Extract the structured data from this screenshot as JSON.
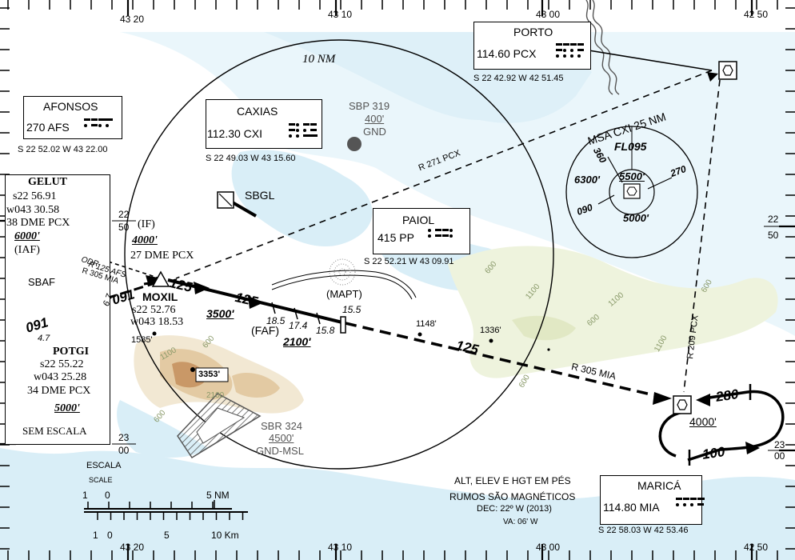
{
  "grid": {
    "top_labels": [
      "43 20",
      "43 10",
      "43 00",
      "42 50"
    ],
    "bottom_labels": [
      "43 20",
      "43 10",
      "43 00",
      "42 50"
    ],
    "left_labels": [
      {
        "deg": "22",
        "min": "50"
      },
      {
        "deg": "23",
        "min": "00"
      }
    ],
    "right_labels": [
      {
        "deg": "22",
        "min": "50"
      },
      {
        "deg": "23",
        "min": "00"
      }
    ]
  },
  "range_ring": "10 NM",
  "fixes": {
    "afonsos": {
      "name": "AFONSOS",
      "freq": "270 AFS",
      "coord": "S 22 52.02 W 43 22.00"
    },
    "caxias": {
      "name": "CAXIAS",
      "freq": "112.30 CXI",
      "coord": "S 22 49.03 W 43 15.60"
    },
    "porto": {
      "name": "PORTO",
      "freq": "114.60  PCX",
      "coord": "S 22 42.92 W 42 51.45"
    },
    "paiol": {
      "name": "PAIOL",
      "freq": "415 PP",
      "coord": "S 22 52.21 W 43 09.91"
    },
    "marica": {
      "name": "MARICÁ",
      "freq": "114.80  MIA",
      "coord": "S 22 58.03 W 42 53.46"
    }
  },
  "gelut": {
    "name": "GELUT",
    "lat": "s22  56.91",
    "lon": "w043  30.58",
    "dme": "38  DME  PCX",
    "alt": "6000'",
    "role": "(IAF)"
  },
  "potgi": {
    "name": "POTGI",
    "lat": "s22  55.22",
    "lon": "w043  25.28",
    "dme": "34  DME  PCX",
    "alt": "5000'",
    "note": "SEM  ESCALA"
  },
  "moxil": {
    "role": "(IF)",
    "alt": "4000'",
    "dme": "27 DME PCX",
    "name": "MOXIL",
    "lat": "s22  52.76",
    "lon": "w043  18.53",
    "min_alt": "3500'"
  },
  "faf": {
    "label": "(FAF)",
    "alt": "2100'"
  },
  "mapt": {
    "label": "(MAPT)",
    "dist": "15.5"
  },
  "dme_marks": [
    "18.5",
    "17.4",
    "15.8"
  ],
  "sbp319": {
    "name": "SBP 319",
    "upper": "400'",
    "lower": "GND"
  },
  "sbr324": {
    "name": "SBR 324",
    "upper": "4500'",
    "lower": "GND-MSL"
  },
  "sbgl": "SBGL",
  "sbaf": "SBAF",
  "radials": {
    "r271": "R 271 PCX",
    "r209": "R 209 PCX",
    "r305": "R 305 MIA",
    "r305b": "R 305 MIA",
    "r125": "R 125 AFS",
    "odr": "ODR"
  },
  "courses": {
    "c091a": "091",
    "c091b": "091",
    "c125a": "125",
    "c125b": "125",
    "c125c": "125",
    "c280": "280",
    "c100": "100"
  },
  "dist_labels": {
    "d47": "4.7",
    "d67": "6.7"
  },
  "spot_heights": [
    "1585'",
    "3353'",
    "1148'",
    "1336'"
  ],
  "contours": [
    "1100",
    "600",
    "1100",
    "600",
    "1100",
    "600",
    "1100",
    "600",
    "600",
    "600",
    "2100"
  ],
  "msa": {
    "title": "MSA  CXI  25  NM",
    "fl": "FL095",
    "center": "5500'",
    "nw": "6300'",
    "s": "5000'",
    "b360": "360",
    "b270": "270",
    "b090": "090"
  },
  "hold_alt": "4000'",
  "notes": {
    "line1": "ALT, ELEV E HGT EM PÉS",
    "line2": "RUMOS SÃO MAGNÉTICOS",
    "line3": "DEC: 22º W (2013)",
    "line4": "VA: 06' W"
  },
  "scale": {
    "title": "ESCALA",
    "sub": "SCALE",
    "nm_labels": [
      "1",
      "0",
      "5  NM"
    ],
    "km_labels": [
      "1",
      "0",
      "5",
      "10  Km"
    ]
  },
  "colors": {
    "water": "#d9eef7",
    "terrain_low": "#eef3dd",
    "terrain_mid": "#e3caa3",
    "terrain_high": "#c99867"
  }
}
